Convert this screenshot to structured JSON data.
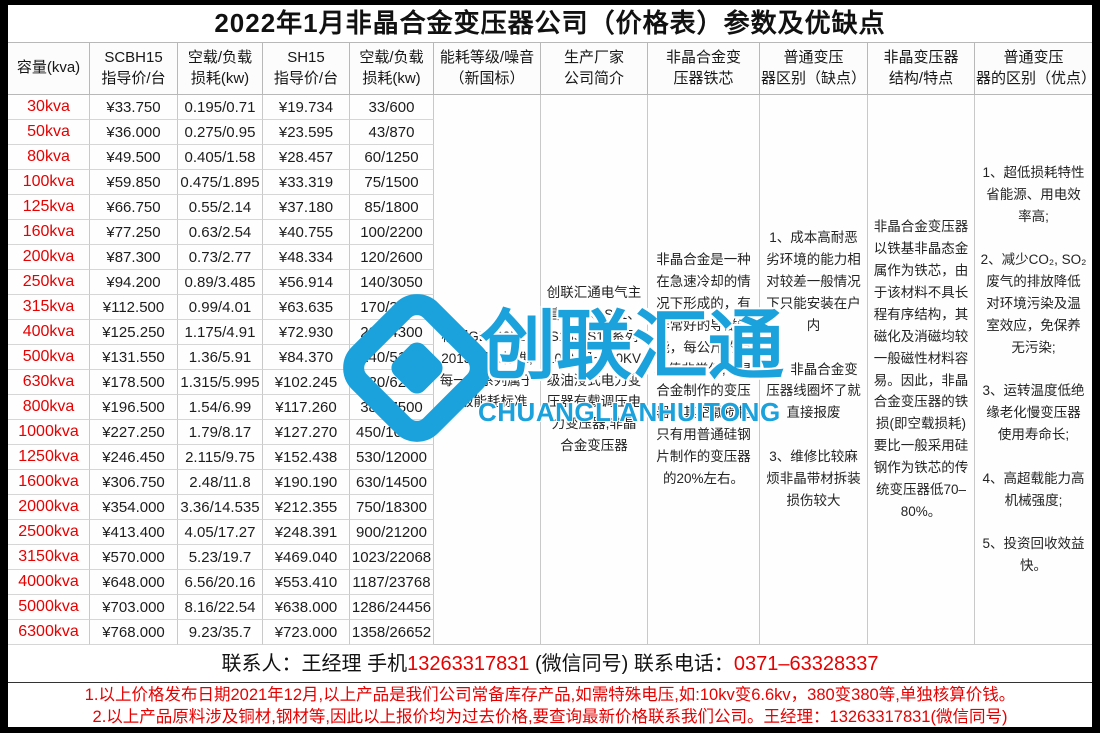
{
  "title": "2022年1月非晶合金变压器公司（价格表）参数及优缺点",
  "colors": {
    "accent_red": "#e60000",
    "watermark_blue": "#1ba1db"
  },
  "watermark": {
    "logo": "knot-logo",
    "text": "创联汇通",
    "subtext": "CHUANGLIANHUITONG"
  },
  "table": {
    "columns": [
      "容量(kva)",
      "SCBH15\n指导价/台",
      "空载/负载\n损耗(kw)",
      "SH15\n指导价/台",
      "空载/负载\n损耗(kw)",
      "能耗等级/噪音\n（新国标）",
      "生产厂家\n公司简介",
      "非晶合金变\n压器铁芯",
      "普通变压\n器区别（缺点）",
      "非晶变压器\n结构/特点",
      "普通变压\n器的区别（优点）"
    ],
    "rows": [
      {
        "capacity": "30kva",
        "scbh15_price": "¥33.750",
        "scbh15_loss": "0.195/0.71",
        "sh15_price": "¥19.734",
        "sh15_loss": "33/600"
      },
      {
        "capacity": "50kva",
        "scbh15_price": "¥36.000",
        "scbh15_loss": "0.275/0.95",
        "sh15_price": "¥23.595",
        "sh15_loss": "43/870"
      },
      {
        "capacity": "80kva",
        "scbh15_price": "¥49.500",
        "scbh15_loss": "0.405/1.58",
        "sh15_price": "¥28.457",
        "sh15_loss": "60/1250"
      },
      {
        "capacity": "100kva",
        "scbh15_price": "¥59.850",
        "scbh15_loss": "0.475/1.895",
        "sh15_price": "¥33.319",
        "sh15_loss": "75/1500"
      },
      {
        "capacity": "125kva",
        "scbh15_price": "¥66.750",
        "scbh15_loss": "0.55/2.14",
        "sh15_price": "¥37.180",
        "sh15_loss": "85/1800"
      },
      {
        "capacity": "160kva",
        "scbh15_price": "¥77.250",
        "scbh15_loss": "0.63/2.54",
        "sh15_price": "¥40.755",
        "sh15_loss": "100/2200"
      },
      {
        "capacity": "200kva",
        "scbh15_price": "¥87.300",
        "scbh15_loss": "0.73/2.77",
        "sh15_price": "¥48.334",
        "sh15_loss": "120/2600"
      },
      {
        "capacity": "250kva",
        "scbh15_price": "¥94.200",
        "scbh15_loss": "0.89/3.485",
        "sh15_price": "¥56.914",
        "sh15_loss": "140/3050"
      },
      {
        "capacity": "315kva",
        "scbh15_price": "¥112.500",
        "scbh15_loss": "0.99/4.01",
        "sh15_price": "¥63.635",
        "sh15_loss": "170/3650"
      },
      {
        "capacity": "400kva",
        "scbh15_price": "¥125.250",
        "scbh15_loss": "1.175/4.91",
        "sh15_price": "¥72.930",
        "sh15_loss": "200/4300"
      },
      {
        "capacity": "500kva",
        "scbh15_price": "¥131.550",
        "scbh15_loss": "1.36/5.91",
        "sh15_price": "¥84.370",
        "sh15_loss": "240/5150"
      },
      {
        "capacity": "630kva",
        "scbh15_price": "¥178.500",
        "scbh15_loss": "1.315/5.995",
        "sh15_price": "¥102.245",
        "sh15_loss": "320/6200"
      },
      {
        "capacity": "800kva",
        "scbh15_price": "¥196.500",
        "scbh15_loss": "1.54/6.99",
        "sh15_price": "¥117.260",
        "sh15_loss": "380/7500"
      },
      {
        "capacity": "1000kva",
        "scbh15_price": "¥227.250",
        "scbh15_loss": "1.79/8.17",
        "sh15_price": "¥127.270",
        "sh15_loss": "450/10300"
      },
      {
        "capacity": "1250kva",
        "scbh15_price": "¥246.450",
        "scbh15_loss": "2.115/9.75",
        "sh15_price": "¥152.438",
        "sh15_loss": "530/12000"
      },
      {
        "capacity": "1600kva",
        "scbh15_price": "¥306.750",
        "scbh15_loss": "2.48/11.8",
        "sh15_price": "¥190.190",
        "sh15_loss": "630/14500"
      },
      {
        "capacity": "2000kva",
        "scbh15_price": "¥354.000",
        "scbh15_loss": "3.36/14.535",
        "sh15_price": "¥212.355",
        "sh15_loss": "750/18300"
      },
      {
        "capacity": "2500kva",
        "scbh15_price": "¥413.400",
        "scbh15_loss": "4.05/17.27",
        "sh15_price": "¥248.391",
        "sh15_loss": "900/21200"
      },
      {
        "capacity": "3150kva",
        "scbh15_price": "¥570.000",
        "scbh15_loss": "5.23/19.7",
        "sh15_price": "¥469.040",
        "sh15_loss": "1023/22068"
      },
      {
        "capacity": "4000kva",
        "scbh15_price": "¥648.000",
        "scbh15_loss": "6.56/20.16",
        "sh15_price": "¥553.410",
        "sh15_loss": "1187/23768"
      },
      {
        "capacity": "5000kva",
        "scbh15_price": "¥703.000",
        "scbh15_loss": "8.16/22.54",
        "sh15_price": "¥638.000",
        "sh15_loss": "1286/24456"
      },
      {
        "capacity": "6300kva",
        "scbh15_price": "¥768.000",
        "scbh15_loss": "9.23/35.7",
        "sh15_price": "¥723.000",
        "sh15_loss": "1358/26652"
      }
    ],
    "merged_cells": [
      {
        "name": "energy-standard-cell",
        "text": "根据GB20052–2013,国家标准,每一个系列属于二级能耗标准"
      },
      {
        "name": "company-profile-cell",
        "text": "创联汇通电气主营：S9、S11、S13、S15系列10KV级~110KV级油浸式电力变压器有载调压电力变压器,非晶合金变压器"
      },
      {
        "name": "amorphous-core-cell",
        "text": "非晶合金是一种在急速冷却的情况下形成的，有非常好的导磁性能，每公斤的损耗值非常低,非晶合金制作的变压器，其空载损耗只有用普通硅钢片制作的变压器的20%左右。"
      },
      {
        "name": "ordinary-diff-cons-cell",
        "text": "1、成本高耐恶劣环境的能力相对较差一般情况下只能安装在户内\n\n2、非晶合金变压器线圈坏了就直接报废\n\n3、维修比较麻烦非晶带材拆装损伤较大"
      },
      {
        "name": "structure-features-cell",
        "text": "非晶合金变压器以铁基非晶态金属作为铁芯，由于该材料不具长程有序结构，其磁化及消磁均较一般磁性材料容易。因此，非晶合金变压器的铁损(即空载损耗)要比一般采用硅钢作为铁芯的传统变压器低70–80%。"
      },
      {
        "name": "ordinary-diff-pros-cell",
        "text": "1、超低损耗特性省能源、用电效率高;\n\n2、减少CO₂, SO₂废气的排放降低对环境污染及温室效应，免保养无污染;\n\n3、运转温度低绝缘老化慢变压器使用寿命长;\n\n4、高超载能力高机械强度;\n\n5、投资回收效益快。"
      }
    ]
  },
  "footer": {
    "contact_label": "联系人：王经理  手机",
    "phone_mobile": "13263317831",
    "contact_mid": " (微信同号) 联系电话：",
    "phone_office": "0371–63328337",
    "note1": "1.以上价格发布日期2021年12月,以上产品是我们公司常备库存产品,如需特殊电压,如:10kv变6.6kv，380变380等,单独核算价钱。",
    "note2": "2.以上产品原料涉及铜材,钢材等,因此以上报价均为过去价格,要查询最新价格联系我们公司。王经理：13263317831(微信同号)"
  }
}
